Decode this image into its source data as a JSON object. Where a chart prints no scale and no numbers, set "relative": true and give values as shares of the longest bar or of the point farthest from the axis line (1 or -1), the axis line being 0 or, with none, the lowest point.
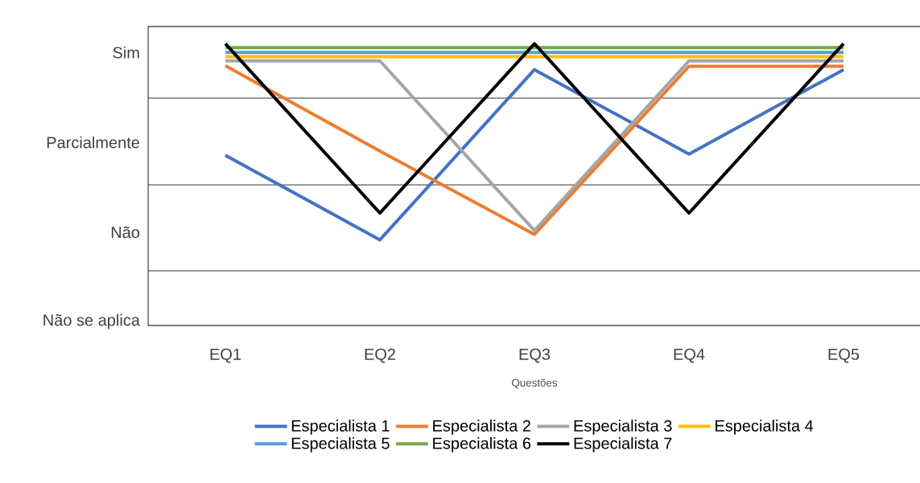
{
  "chart_data": {
    "type": "line",
    "xlabel": "Questões",
    "relative": true,
    "categories": [
      "EQ1",
      "EQ2",
      "EQ3",
      "EQ4",
      "EQ5"
    ],
    "annotations": [
      "Não se aplica",
      "Não",
      "Parcialmente",
      "Sim"
    ],
    "series": [
      {
        "name": "Especialista 1",
        "color": "#4472c4",
        "values": [
          0.604,
          0.304,
          0.908,
          0.608,
          0.908
        ]
      },
      {
        "name": "Especialista 2",
        "color": "#ed7d31",
        "values": [
          0.922,
          0.619,
          0.323,
          0.92,
          0.92
        ]
      },
      {
        "name": "Especialista 3",
        "color": "#a5a5a5",
        "values": [
          0.939,
          0.939,
          0.337,
          0.939,
          0.939
        ]
      },
      {
        "name": "Especialista 4",
        "color": "#ffc000",
        "values": [
          0.954,
          0.954,
          0.954,
          0.954,
          0.954
        ]
      },
      {
        "name": "Especialista 5",
        "color": "#5b9bd5",
        "values": [
          0.969,
          0.969,
          0.969,
          0.969,
          0.969
        ]
      },
      {
        "name": "Especialista 6",
        "color": "#70ad47",
        "values": [
          0.986,
          0.986,
          0.986,
          0.986,
          0.986
        ]
      },
      {
        "name": "Especialista 7",
        "color": "#000000",
        "values": [
          1,
          0.399,
          1,
          0.399,
          1
        ]
      }
    ],
    "ref_lines": [
      {
        "axis": "y",
        "value": 0.194,
        "color": "#000000"
      },
      {
        "axis": "y",
        "value": 0.499,
        "color": "#000000"
      },
      {
        "axis": "y",
        "value": 0.807,
        "color": "#000000"
      }
    ],
    "grid": false,
    "legend": "bottom",
    "marker": "none",
    "line_style": "solid"
  }
}
